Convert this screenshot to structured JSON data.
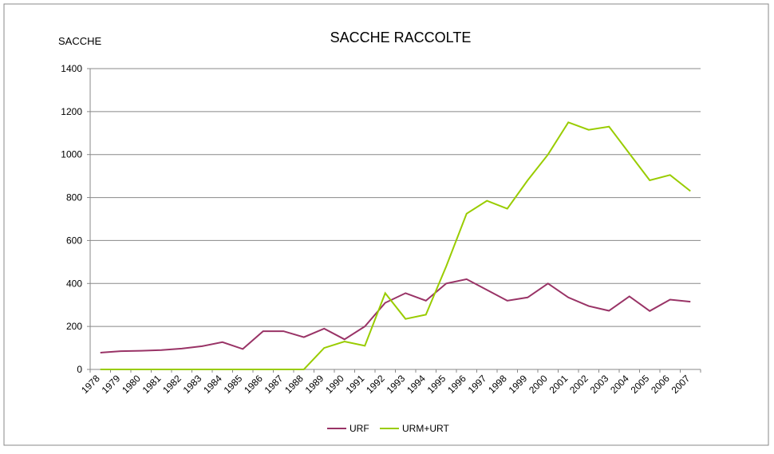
{
  "chart_data": {
    "type": "line",
    "title": "SACCHE RACCOLTE",
    "y_label": "SACCHE",
    "categories": [
      "1978",
      "1979",
      "1980",
      "1981",
      "1982",
      "1983",
      "1984",
      "1985",
      "1986",
      "1987",
      "1988",
      "1989",
      "1990",
      "1991",
      "1992",
      "1993",
      "1994",
      "1995",
      "1996",
      "1997",
      "1998",
      "1999",
      "2000",
      "2001",
      "2002",
      "2003",
      "2004",
      "2005",
      "2006",
      "2007"
    ],
    "series": [
      {
        "name": "URF",
        "color": "#993366",
        "values": [
          78,
          85,
          87,
          90,
          97,
          108,
          127,
          95,
          178,
          178,
          150,
          190,
          140,
          200,
          310,
          355,
          320,
          400,
          420,
          370,
          320,
          335,
          400,
          335,
          295,
          273,
          340,
          272,
          325,
          315
        ]
      },
      {
        "name": "URM+URT",
        "color": "#99cc00",
        "values": [
          0,
          0,
          0,
          0,
          0,
          0,
          0,
          0,
          0,
          0,
          0,
          100,
          130,
          110,
          355,
          235,
          255,
          480,
          725,
          785,
          748,
          880,
          1000,
          1150,
          1115,
          1130,
          1005,
          880,
          905,
          830
        ]
      }
    ],
    "ylim": [
      0,
      1400
    ],
    "yticks": [
      0,
      200,
      400,
      600,
      800,
      1000,
      1200,
      1400
    ],
    "grid": true,
    "legend": "bottom"
  }
}
